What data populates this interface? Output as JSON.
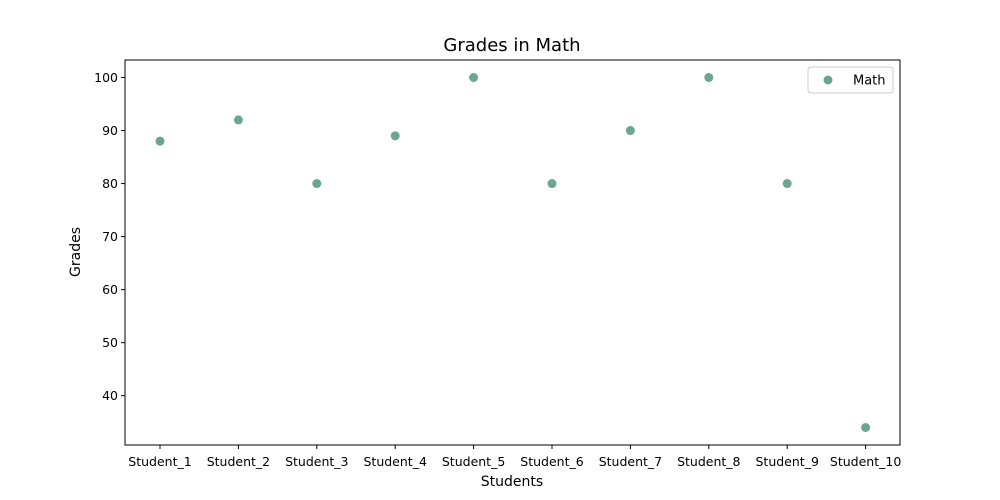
{
  "chart_data": {
    "type": "scatter",
    "title": "Grades in Math",
    "xlabel": "Students",
    "ylabel": "Grades",
    "categories": [
      "Student_1",
      "Student_2",
      "Student_3",
      "Student_4",
      "Student_5",
      "Student_6",
      "Student_7",
      "Student_8",
      "Student_9",
      "Student_10"
    ],
    "series": [
      {
        "name": "Math",
        "color": "#6aa690",
        "values": [
          88,
          92,
          80,
          89,
          100,
          80,
          90,
          100,
          80,
          34
        ]
      }
    ],
    "ylim": [
      30.7,
      103.3
    ],
    "yticks": [
      40,
      50,
      60,
      70,
      80,
      90,
      100
    ],
    "grid": false,
    "legend": "top-right"
  }
}
